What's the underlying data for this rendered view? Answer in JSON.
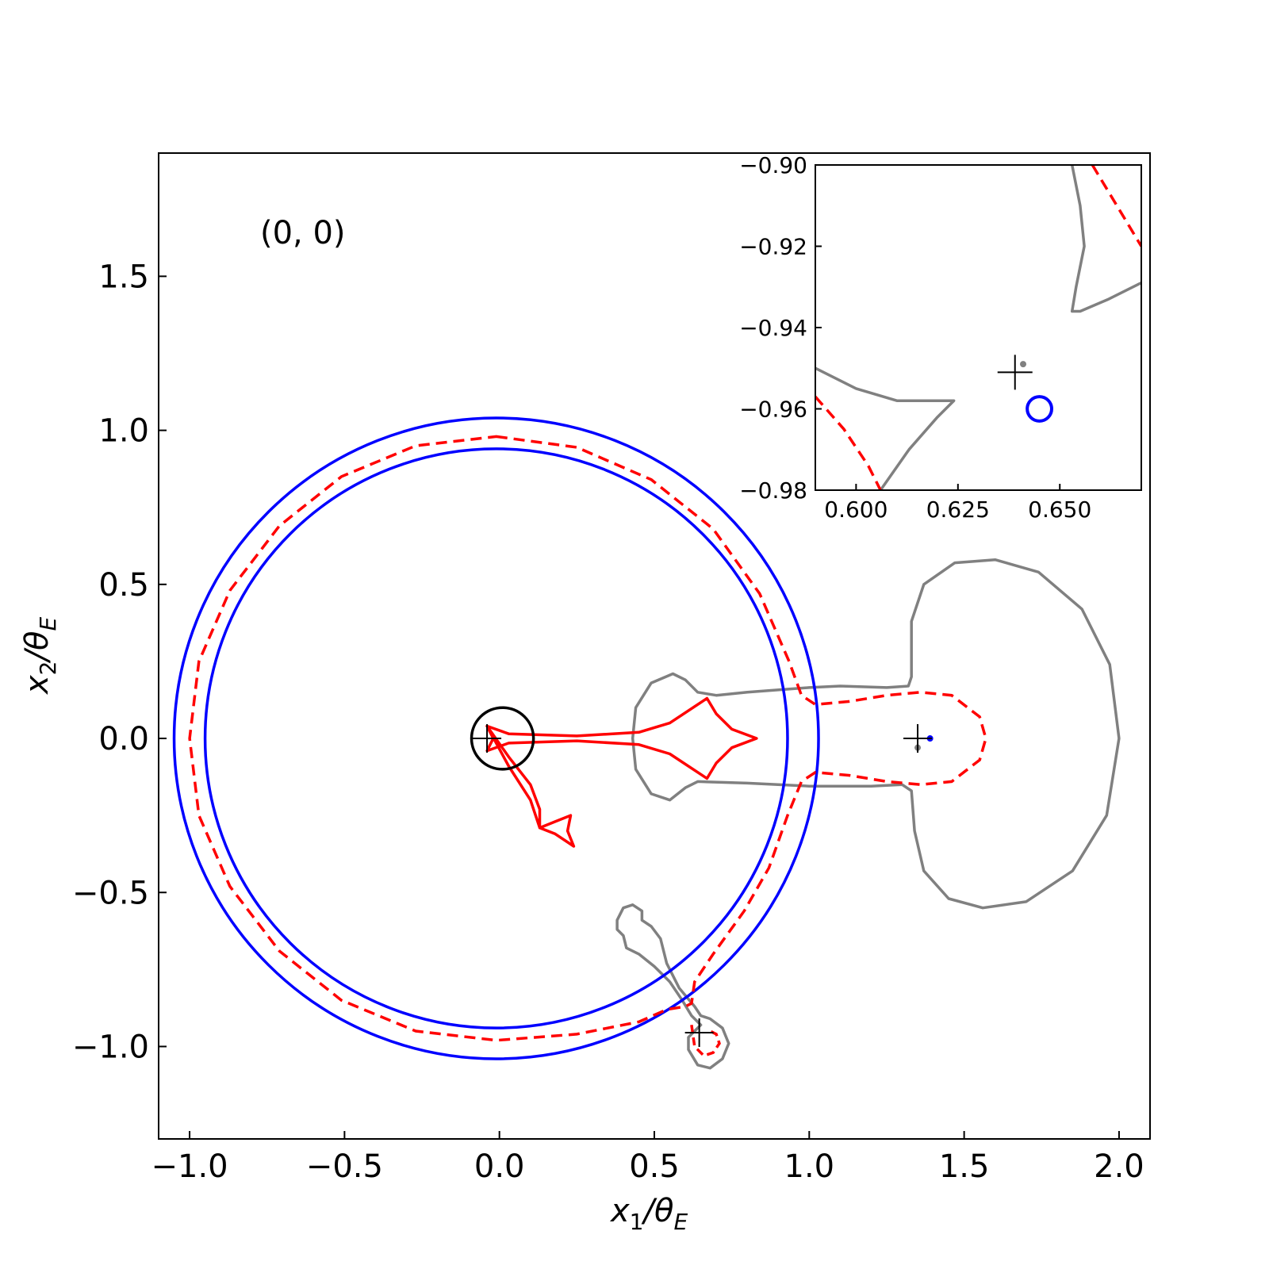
{
  "chart_data": {
    "type": "line",
    "annotation": "(0, 0)",
    "xlabel": {
      "main": "x",
      "sub": "1",
      "den": "/θ",
      "den_sub": "E"
    },
    "ylabel": {
      "main": "x",
      "sub": "2",
      "den": "/θ",
      "den_sub": "E"
    },
    "xlim": [
      -1.1,
      2.1
    ],
    "ylim": [
      -1.3,
      1.9
    ],
    "xticks": [
      -1.0,
      -0.5,
      0.0,
      0.5,
      1.0,
      1.5,
      2.0
    ],
    "xtick_labels": [
      "−1.0",
      "−0.5",
      "0.0",
      "0.5",
      "1.0",
      "1.5",
      "2.0"
    ],
    "yticks": [
      -1.0,
      -0.5,
      0.0,
      0.5,
      1.0,
      1.5
    ],
    "ytick_labels": [
      "−1.0",
      "−0.5",
      "0.0",
      "0.5",
      "1.0",
      "1.5"
    ],
    "colors": {
      "blue": "#0000ff",
      "red": "#ff0000",
      "gray": "#808080",
      "black": "#000000"
    },
    "outer_circle": {
      "cx": -0.01,
      "cy": 0.0,
      "r": 1.04
    },
    "inner_circle": {
      "cx": -0.01,
      "cy": 0.0,
      "r": 0.94
    },
    "dashed_critical_curve": [
      [
        -0.01,
        0.98
      ],
      [
        0.25,
        0.945
      ],
      [
        0.49,
        0.84
      ],
      [
        0.69,
        0.68
      ],
      [
        0.84,
        0.47
      ],
      [
        0.935,
        0.25
      ],
      [
        0.975,
        0.14
      ],
      [
        1.02,
        0.11
      ],
      [
        1.13,
        0.12
      ],
      [
        1.25,
        0.14
      ],
      [
        1.36,
        0.15
      ],
      [
        1.46,
        0.14
      ],
      [
        1.55,
        0.07
      ],
      [
        1.57,
        0.0
      ],
      [
        1.55,
        -0.07
      ],
      [
        1.46,
        -0.14
      ],
      [
        1.36,
        -0.15
      ],
      [
        1.25,
        -0.14
      ],
      [
        1.13,
        -0.12
      ],
      [
        1.02,
        -0.11
      ],
      [
        0.975,
        -0.14
      ],
      [
        0.93,
        -0.25
      ],
      [
        0.87,
        -0.42
      ],
      [
        0.79,
        -0.56
      ],
      [
        0.69,
        -0.7
      ],
      [
        0.63,
        -0.79
      ],
      [
        0.62,
        -0.86
      ],
      [
        0.6,
        -0.87
      ],
      [
        0.54,
        -0.88
      ],
      [
        0.45,
        -0.92
      ],
      [
        0.25,
        -0.96
      ],
      [
        -0.01,
        -0.98
      ],
      [
        -0.27,
        -0.95
      ],
      [
        -0.51,
        -0.85
      ],
      [
        -0.71,
        -0.69
      ],
      [
        -0.87,
        -0.48
      ],
      [
        -0.97,
        -0.25
      ],
      [
        -1.0,
        0.0
      ],
      [
        -0.97,
        0.25
      ],
      [
        -0.87,
        0.48
      ],
      [
        -0.71,
        0.69
      ],
      [
        -0.51,
        0.85
      ],
      [
        -0.27,
        0.95
      ],
      [
        -0.01,
        0.98
      ]
    ],
    "dashed_small_loop": [
      [
        0.62,
        -0.93
      ],
      [
        0.63,
        -1.0
      ],
      [
        0.66,
        -1.03
      ],
      [
        0.69,
        -1.02
      ],
      [
        0.71,
        -0.99
      ],
      [
        0.7,
        -0.96
      ],
      [
        0.68,
        -0.95
      ]
    ],
    "caustic_central": [
      [
        -0.04,
        0.04
      ],
      [
        0.03,
        0.015
      ],
      [
        0.25,
        0.008
      ],
      [
        0.45,
        0.02
      ],
      [
        0.55,
        0.05
      ],
      [
        0.67,
        0.13
      ],
      [
        0.7,
        0.08
      ],
      [
        0.75,
        0.03
      ],
      [
        0.83,
        0.0
      ],
      [
        0.75,
        -0.03
      ],
      [
        0.7,
        -0.08
      ],
      [
        0.67,
        -0.13
      ],
      [
        0.55,
        -0.05
      ],
      [
        0.45,
        -0.02
      ],
      [
        0.25,
        -0.008
      ],
      [
        0.03,
        -0.015
      ],
      [
        -0.04,
        -0.04
      ],
      [
        -0.02,
        0.0
      ],
      [
        -0.04,
        0.04
      ]
    ],
    "caustic_lower": [
      [
        -0.04,
        0.04
      ],
      [
        0.03,
        -0.06
      ],
      [
        0.1,
        -0.15
      ],
      [
        0.13,
        -0.23
      ],
      [
        0.13,
        -0.29
      ],
      [
        0.18,
        -0.27
      ],
      [
        0.23,
        -0.25
      ],
      [
        0.22,
        -0.3
      ],
      [
        0.24,
        -0.35
      ],
      [
        0.18,
        -0.31
      ],
      [
        0.13,
        -0.29
      ],
      [
        0.1,
        -0.2
      ],
      [
        0.03,
        -0.09
      ],
      [
        -0.04,
        0.04
      ]
    ],
    "gray_big_curve": [
      [
        0.55,
        -0.2
      ],
      [
        0.6,
        -0.16
      ],
      [
        0.64,
        -0.14
      ],
      [
        0.8,
        -0.145
      ],
      [
        1.0,
        -0.155
      ],
      [
        1.2,
        -0.155
      ],
      [
        1.3,
        -0.15
      ],
      [
        1.33,
        -0.17
      ],
      [
        1.34,
        -0.3
      ],
      [
        1.37,
        -0.43
      ],
      [
        1.45,
        -0.52
      ],
      [
        1.56,
        -0.55
      ],
      [
        1.7,
        -0.53
      ],
      [
        1.85,
        -0.43
      ],
      [
        1.96,
        -0.25
      ],
      [
        2.0,
        0.0
      ],
      [
        1.97,
        0.24
      ],
      [
        1.88,
        0.42
      ],
      [
        1.74,
        0.54
      ],
      [
        1.6,
        0.58
      ],
      [
        1.47,
        0.57
      ],
      [
        1.37,
        0.5
      ],
      [
        1.33,
        0.38
      ],
      [
        1.33,
        0.2
      ],
      [
        1.32,
        0.17
      ],
      [
        1.25,
        0.165
      ],
      [
        1.1,
        0.17
      ],
      [
        1.0,
        0.165
      ],
      [
        0.8,
        0.15
      ],
      [
        0.7,
        0.14
      ],
      [
        0.64,
        0.15
      ],
      [
        0.6,
        0.19
      ],
      [
        0.56,
        0.21
      ],
      [
        0.49,
        0.18
      ],
      [
        0.44,
        0.1
      ],
      [
        0.43,
        0.0
      ],
      [
        0.44,
        -0.1
      ],
      [
        0.49,
        -0.18
      ],
      [
        0.55,
        -0.2
      ]
    ],
    "gray_small_curve": [
      [
        0.65,
        -0.93
      ],
      [
        0.62,
        -0.9
      ],
      [
        0.59,
        -0.85
      ],
      [
        0.55,
        -0.79
      ],
      [
        0.5,
        -0.74
      ],
      [
        0.45,
        -0.7
      ],
      [
        0.41,
        -0.68
      ],
      [
        0.4,
        -0.64
      ],
      [
        0.38,
        -0.62
      ],
      [
        0.38,
        -0.59
      ],
      [
        0.4,
        -0.55
      ],
      [
        0.43,
        -0.54
      ],
      [
        0.46,
        -0.56
      ],
      [
        0.46,
        -0.59
      ],
      [
        0.49,
        -0.61
      ],
      [
        0.52,
        -0.65
      ],
      [
        0.54,
        -0.73
      ],
      [
        0.58,
        -0.81
      ],
      [
        0.63,
        -0.87
      ],
      [
        0.65,
        -0.9
      ],
      [
        0.68,
        -0.91
      ],
      [
        0.72,
        -0.94
      ],
      [
        0.74,
        -0.99
      ],
      [
        0.72,
        -1.04
      ],
      [
        0.68,
        -1.07
      ],
      [
        0.64,
        -1.06
      ],
      [
        0.61,
        -1.01
      ],
      [
        0.61,
        -0.97
      ],
      [
        0.63,
        -0.95
      ],
      [
        0.65,
        -0.93
      ]
    ],
    "source_circle": {
      "cx": 0.01,
      "cy": 0.0,
      "r": 0.1
    },
    "crosses": [
      [
        -0.04,
        0.0
      ],
      [
        1.35,
        0.0
      ],
      [
        0.645,
        -0.955
      ]
    ],
    "blue_dots": [
      [
        1.39,
        0.0
      ]
    ],
    "gray_dots": [
      [
        1.35,
        -0.03
      ]
    ],
    "inset": {
      "xlim": [
        0.59,
        0.67
      ],
      "ylim": [
        -0.98,
        -0.9
      ],
      "xticks": [
        0.6,
        0.625,
        0.65
      ],
      "xtick_labels": [
        "0.600",
        "0.625",
        "0.650"
      ],
      "yticks": [
        -0.98,
        -0.96,
        -0.94,
        -0.92,
        -0.9
      ],
      "ytick_labels": [
        "−0.98",
        "−0.96",
        "−0.94",
        "−0.92",
        "−0.90"
      ],
      "gray_upper": [
        [
          0.653,
          -0.9
        ],
        [
          0.655,
          -0.91
        ],
        [
          0.656,
          -0.92
        ],
        [
          0.654,
          -0.93
        ],
        [
          0.653,
          -0.936
        ],
        [
          0.655,
          -0.936
        ],
        [
          0.662,
          -0.933
        ],
        [
          0.67,
          -0.929
        ]
      ],
      "gray_lower": [
        [
          0.59,
          -0.95
        ],
        [
          0.6,
          -0.955
        ],
        [
          0.61,
          -0.958
        ],
        [
          0.622,
          -0.958
        ],
        [
          0.624,
          -0.958
        ],
        [
          0.62,
          -0.962
        ],
        [
          0.613,
          -0.97
        ],
        [
          0.606,
          -0.98
        ]
      ],
      "red_upper": [
        [
          0.658,
          -0.9
        ],
        [
          0.664,
          -0.91
        ],
        [
          0.67,
          -0.92
        ]
      ],
      "red_lower": [
        [
          0.59,
          -0.957
        ],
        [
          0.597,
          -0.965
        ],
        [
          0.603,
          -0.974
        ],
        [
          0.606,
          -0.98
        ]
      ],
      "cross": [
        0.639,
        -0.951
      ],
      "gray_dot": [
        0.641,
        -0.949
      ],
      "blue_circle": {
        "cx": 0.645,
        "cy": -0.96,
        "r": 0.003
      }
    }
  }
}
